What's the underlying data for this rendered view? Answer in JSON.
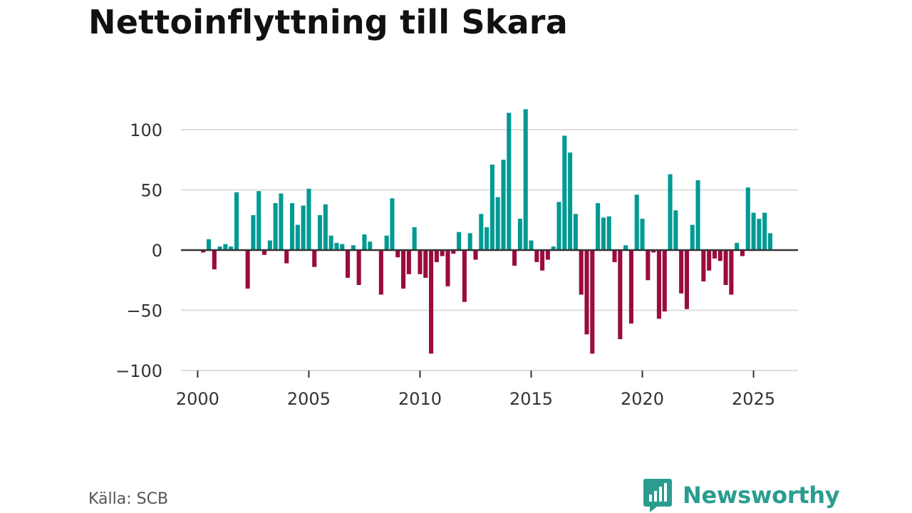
{
  "colors": {
    "positive": "#009a93",
    "negative": "#9b0b3e",
    "grid": "#dddddd",
    "zero_line": "#333333",
    "brand": "#2a9d8f"
  },
  "footer": {
    "source": "Källa: SCB",
    "brand_name": "Newsworthy",
    "brand_icon": "bar-chart-bubble-icon"
  },
  "chart_data": {
    "type": "bar",
    "title": "Nettoinflyttning till Skara",
    "xlabel": "",
    "ylabel": "",
    "ylim": [
      -100,
      120
    ],
    "xlim": [
      1999.25,
      2027.0
    ],
    "yticks": [
      100,
      50,
      0,
      -50,
      -100
    ],
    "ytick_labels": [
      "100",
      "50",
      "0",
      "−50",
      "−100"
    ],
    "xticks": [
      2000,
      2005,
      2010,
      2015,
      2020,
      2025
    ],
    "xtick_labels": [
      "2000",
      "2005",
      "2010",
      "2015",
      "2020",
      "2025"
    ],
    "frequency": "quarterly",
    "start": "2000 Q1",
    "series": [
      {
        "name": "Nettoinflyttning",
        "values": [
          0,
          -2,
          9,
          -16,
          3,
          5,
          3,
          48,
          0,
          -32,
          29,
          49,
          -4,
          8,
          39,
          47,
          -11,
          39,
          21,
          37,
          51,
          -14,
          29,
          38,
          12,
          6,
          5,
          -23,
          4,
          -29,
          13,
          7,
          0,
          -37,
          12,
          43,
          -6,
          -32,
          -20,
          19,
          -20,
          -23,
          -86,
          -10,
          -5,
          -30,
          -3,
          15,
          -43,
          14,
          -8,
          30,
          19,
          71,
          44,
          75,
          114,
          -13,
          26,
          117,
          8,
          -10,
          -17,
          -8,
          3,
          40,
          95,
          81,
          30,
          -37,
          -70,
          -86,
          39,
          27,
          28,
          -10,
          -74,
          4,
          -61,
          46,
          26,
          -25,
          -2,
          -57,
          -51,
          63,
          33,
          -36,
          -49,
          21,
          58,
          -26,
          -17,
          -7,
          -9,
          -29,
          -37,
          6,
          -5,
          52,
          31,
          26,
          31,
          14
        ]
      }
    ]
  }
}
